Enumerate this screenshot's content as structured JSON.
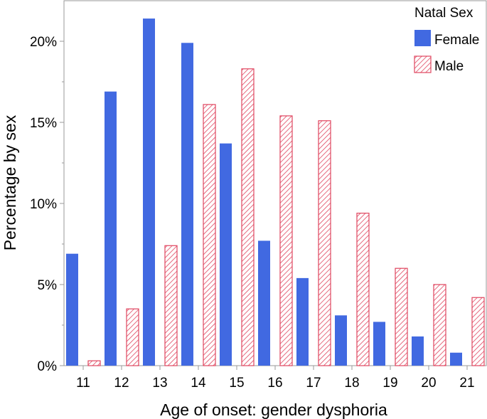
{
  "chart_data": {
    "type": "bar",
    "title": "",
    "xlabel": "Age of onset: gender dysphoria",
    "ylabel": "Percentage by sex",
    "categories": [
      "11",
      "12",
      "13",
      "14",
      "15",
      "16",
      "17",
      "18",
      "19",
      "20",
      "21"
    ],
    "series": [
      {
        "name": "Female",
        "values": [
          6.9,
          16.9,
          21.4,
          19.9,
          13.7,
          7.7,
          5.4,
          3.1,
          2.7,
          1.8,
          0.8
        ],
        "color": "#4169e1",
        "pattern": "solid"
      },
      {
        "name": "Male",
        "values": [
          0.3,
          3.5,
          7.4,
          16.1,
          18.3,
          15.4,
          15.1,
          9.4,
          6.0,
          5.0,
          4.2
        ],
        "color": "#e0455f",
        "pattern": "hatch"
      }
    ],
    "ylim": [
      0,
      22.5
    ],
    "yticks": [
      0,
      5,
      10,
      15,
      20
    ],
    "ytick_labels": [
      "0%",
      "5%",
      "10%",
      "15%",
      "20%"
    ],
    "legend": {
      "title": "Natal Sex",
      "position": "top-right"
    },
    "grid": false
  }
}
